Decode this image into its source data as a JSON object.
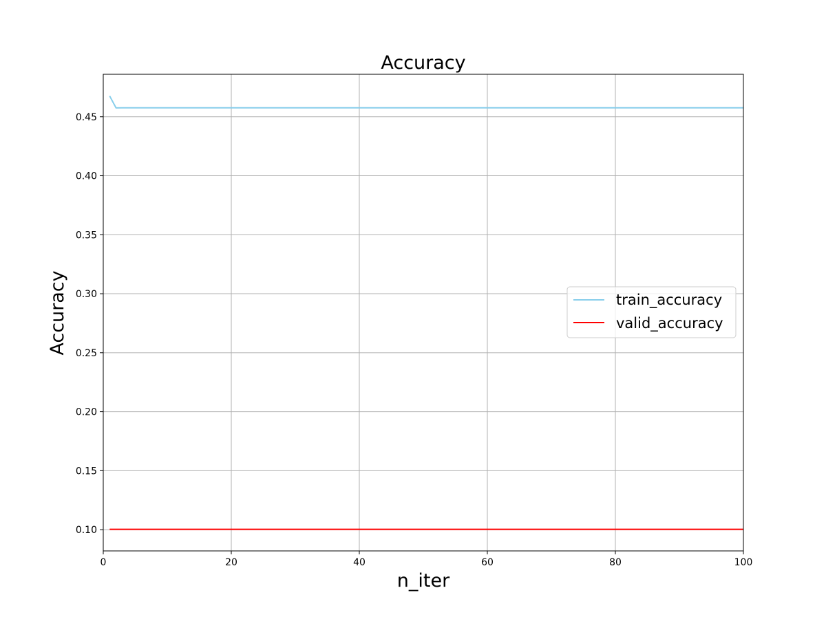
{
  "chart_data": {
    "type": "line",
    "title": "Accuracy",
    "xlabel": "n_iter",
    "ylabel": "Accuracy",
    "xlim": [
      0,
      100
    ],
    "ylim": [
      0.082,
      0.486
    ],
    "xticks": [
      0,
      20,
      40,
      60,
      80,
      100
    ],
    "xtick_labels": [
      "0",
      "20",
      "40",
      "60",
      "80",
      "100"
    ],
    "yticks": [
      0.1,
      0.15,
      0.2,
      0.25,
      0.3,
      0.35,
      0.4,
      0.45
    ],
    "ytick_labels": [
      "0.10",
      "0.15",
      "0.20",
      "0.25",
      "0.30",
      "0.35",
      "0.40",
      "0.45"
    ],
    "grid": true,
    "legend_position": "center-right",
    "series": [
      {
        "name": "train_accuracy",
        "color": "#87ceeb",
        "x": [
          1,
          2,
          3,
          100
        ],
        "y": [
          0.4676,
          0.4575,
          0.4576,
          0.4576
        ]
      },
      {
        "name": "valid_accuracy",
        "color": "#ff0000",
        "x": [
          1,
          100
        ],
        "y": [
          0.1003,
          0.1003
        ]
      }
    ]
  }
}
